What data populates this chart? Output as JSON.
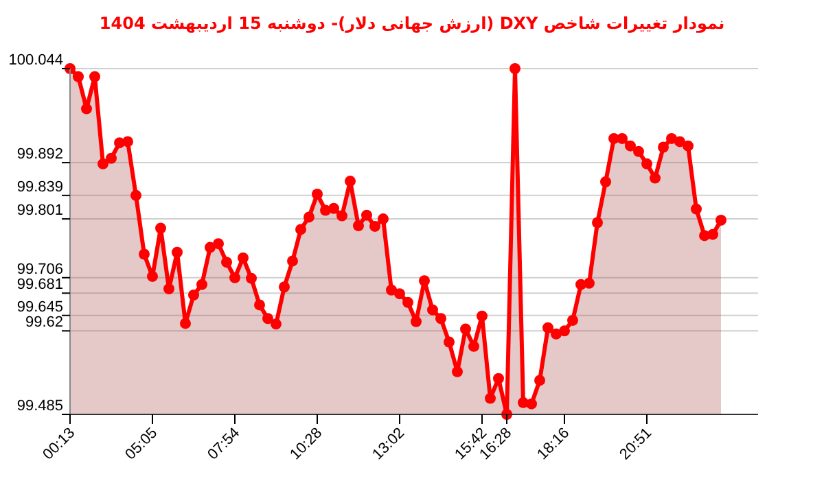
{
  "chart_data": {
    "type": "area",
    "title": "نمودار تغییرات شاخص DXY (ارزش جهانی دلار)- دوشنبه  15 اردیبهشت 1404",
    "categories": [
      "00:13",
      null,
      null,
      null,
      null,
      null,
      null,
      null,
      null,
      null,
      "05:05",
      null,
      null,
      null,
      null,
      null,
      null,
      null,
      null,
      null,
      "07:54",
      null,
      null,
      null,
      null,
      null,
      null,
      null,
      null,
      null,
      "10:28",
      null,
      null,
      null,
      null,
      null,
      null,
      null,
      null,
      null,
      "13:02",
      null,
      null,
      null,
      null,
      null,
      null,
      null,
      null,
      null,
      "15:42",
      null,
      null,
      "16:28",
      null,
      null,
      null,
      null,
      null,
      null,
      "18:16",
      null,
      null,
      null,
      null,
      null,
      null,
      null,
      null,
      null,
      "20:51",
      null,
      null,
      null,
      null,
      null,
      null,
      null,
      null,
      null
    ],
    "series": [
      {
        "color": "#ff0000",
        "values": [
          100.044,
          100.031,
          99.979,
          100.031,
          99.89,
          99.899,
          99.924,
          99.926,
          99.839,
          99.744,
          99.708,
          99.786,
          99.688,
          99.747,
          99.632,
          99.678,
          99.695,
          99.755,
          99.761,
          99.731,
          99.706,
          99.738,
          99.705,
          99.662,
          99.64,
          99.631,
          99.691,
          99.733,
          99.784,
          99.804,
          99.841,
          99.815,
          99.818,
          99.806,
          99.862,
          99.79,
          99.807,
          99.789,
          99.801,
          99.686,
          99.68,
          99.666,
          99.635,
          99.701,
          99.654,
          99.64,
          99.602,
          99.554,
          99.623,
          99.595,
          99.644,
          99.511,
          99.543,
          99.485,
          100.044,
          99.504,
          99.502,
          99.54,
          99.625,
          99.615,
          99.62,
          99.637,
          99.695,
          99.697,
          99.795,
          99.861,
          99.931,
          99.931,
          99.919,
          99.91,
          99.89,
          99.867,
          99.917,
          99.931,
          99.926,
          99.919,
          99.817,
          99.774,
          99.776,
          99.799
        ]
      }
    ],
    "ylim": [
      99.485,
      100.044
    ],
    "yticks": [
      100.044,
      99.892,
      99.839,
      99.801,
      99.706,
      99.681,
      99.645,
      99.62,
      99.485
    ],
    "grid": "y",
    "marker": "circle"
  }
}
